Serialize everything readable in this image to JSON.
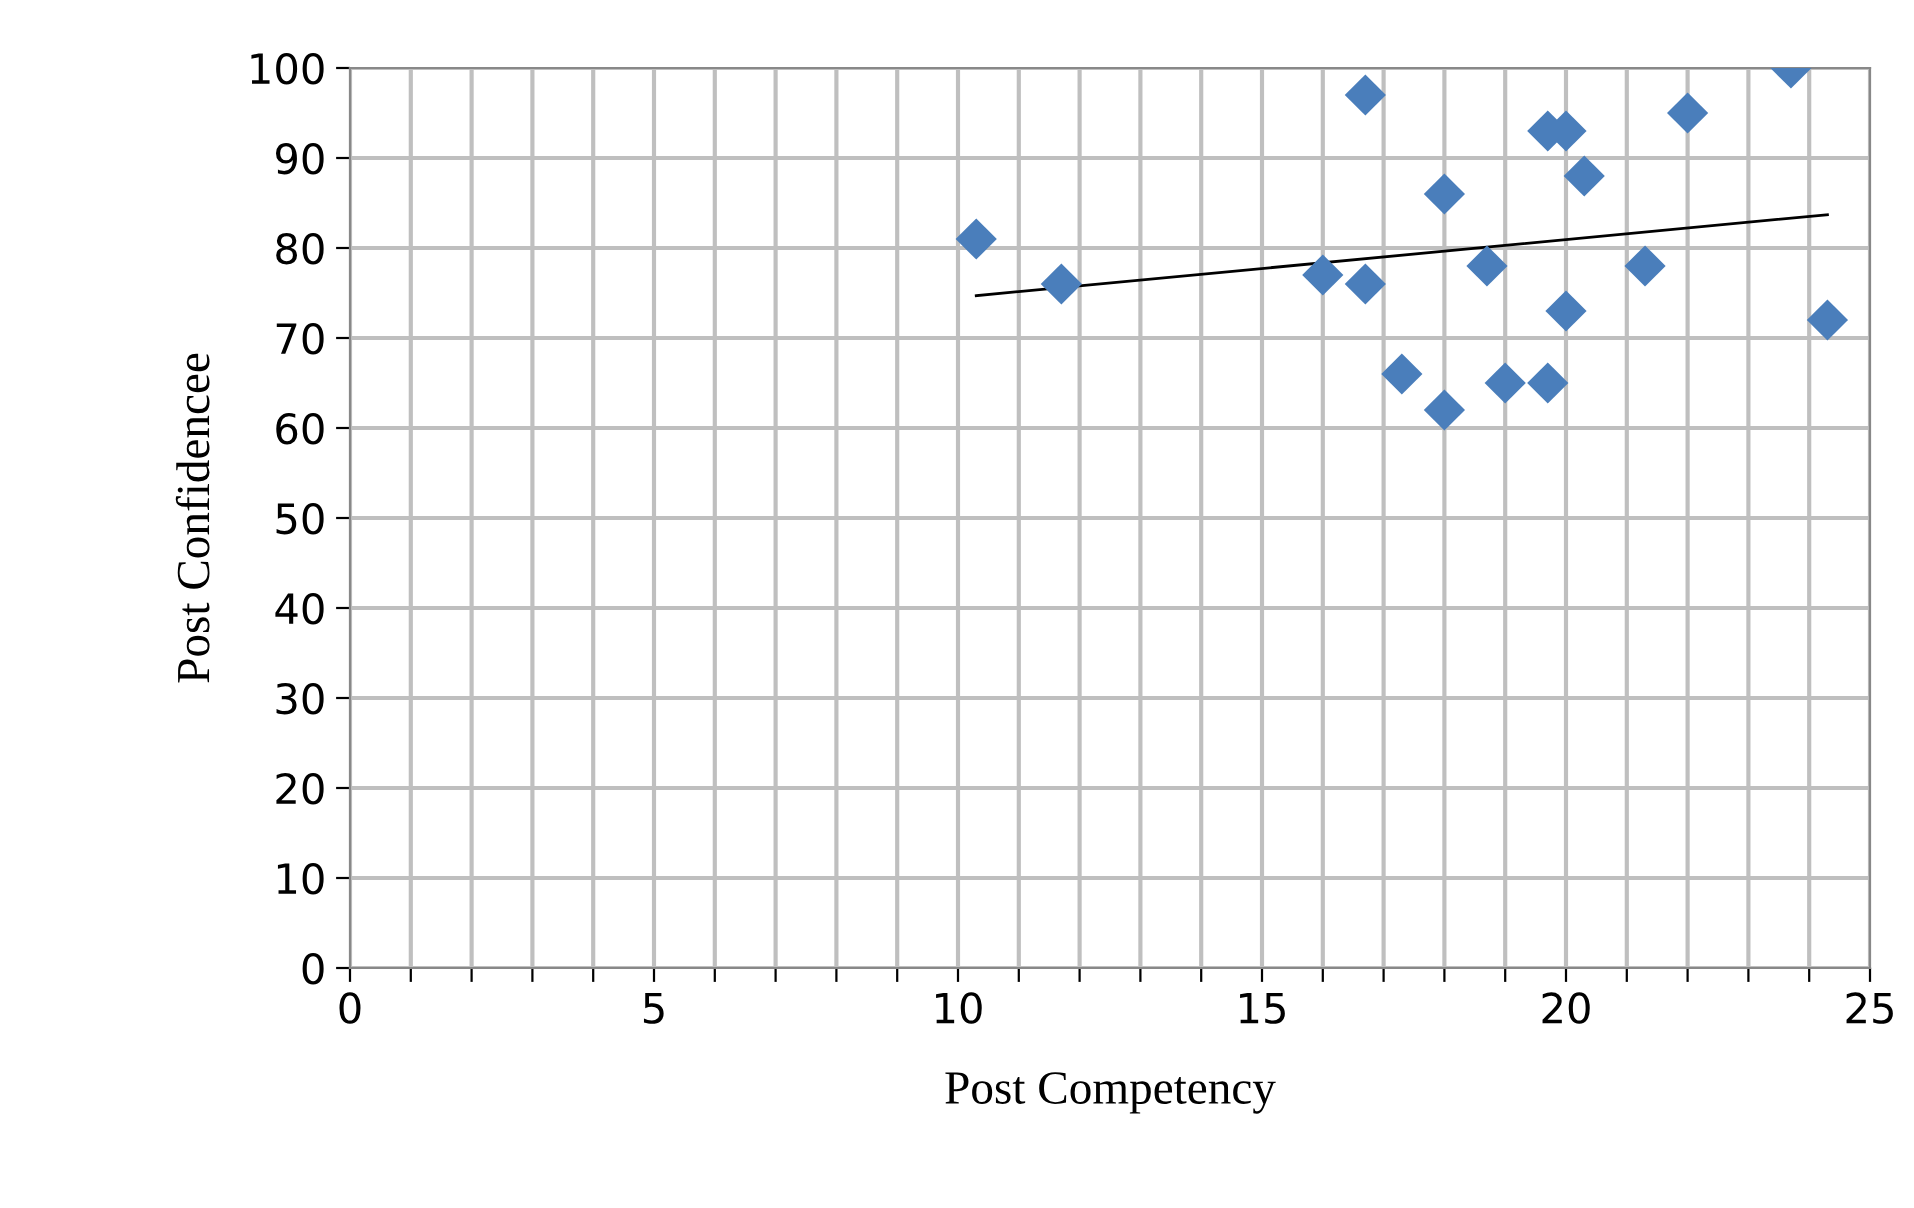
{
  "chart_data": {
    "type": "scatter",
    "xlabel": "Post Competency",
    "ylabel": "Post Confidencee",
    "xlim": [
      0,
      25
    ],
    "ylim": [
      0,
      100
    ],
    "xticks": [
      0,
      {
        "value": 1,
        "label": null
      },
      {
        "value": 2,
        "label": null
      },
      {
        "value": 3,
        "label": null
      },
      {
        "value": 4,
        "label": null
      },
      5,
      {
        "value": 6,
        "label": null
      },
      {
        "value": 7,
        "label": null
      },
      {
        "value": 8,
        "label": null
      },
      {
        "value": 9,
        "label": null
      },
      10,
      {
        "value": 11,
        "label": null
      },
      {
        "value": 12,
        "label": null
      },
      {
        "value": 13,
        "label": null
      },
      {
        "value": 14,
        "label": null
      },
      15,
      {
        "value": 16,
        "label": null
      },
      {
        "value": 17,
        "label": null
      },
      {
        "value": 18,
        "label": null
      },
      {
        "value": 19,
        "label": null
      },
      20,
      {
        "value": 21,
        "label": null
      },
      {
        "value": 22,
        "label": null
      },
      {
        "value": 23,
        "label": null
      },
      {
        "value": 24,
        "label": null
      },
      25
    ],
    "yticks": [
      0,
      10,
      20,
      30,
      40,
      50,
      60,
      70,
      80,
      90,
      100
    ],
    "grid": true,
    "series": [
      {
        "marker": "diamond",
        "color": "#4a7ebb",
        "x": [
          10.3,
          11.7,
          16,
          16.7,
          16.7,
          17.3,
          18,
          18,
          18.7,
          19,
          19.7,
          19.7,
          20,
          20,
          20.3,
          21.3,
          22,
          23.7,
          24.3
        ],
        "values": [
          81,
          76,
          77,
          97,
          76,
          66,
          86,
          62,
          78,
          65,
          93,
          65,
          93,
          73,
          88,
          78,
          95,
          100,
          72
        ]
      },
      {
        "type": "line",
        "color": "#000000",
        "x": [
          10.3,
          24.3
        ],
        "values": [
          74.7,
          83.7
        ]
      }
    ]
  }
}
